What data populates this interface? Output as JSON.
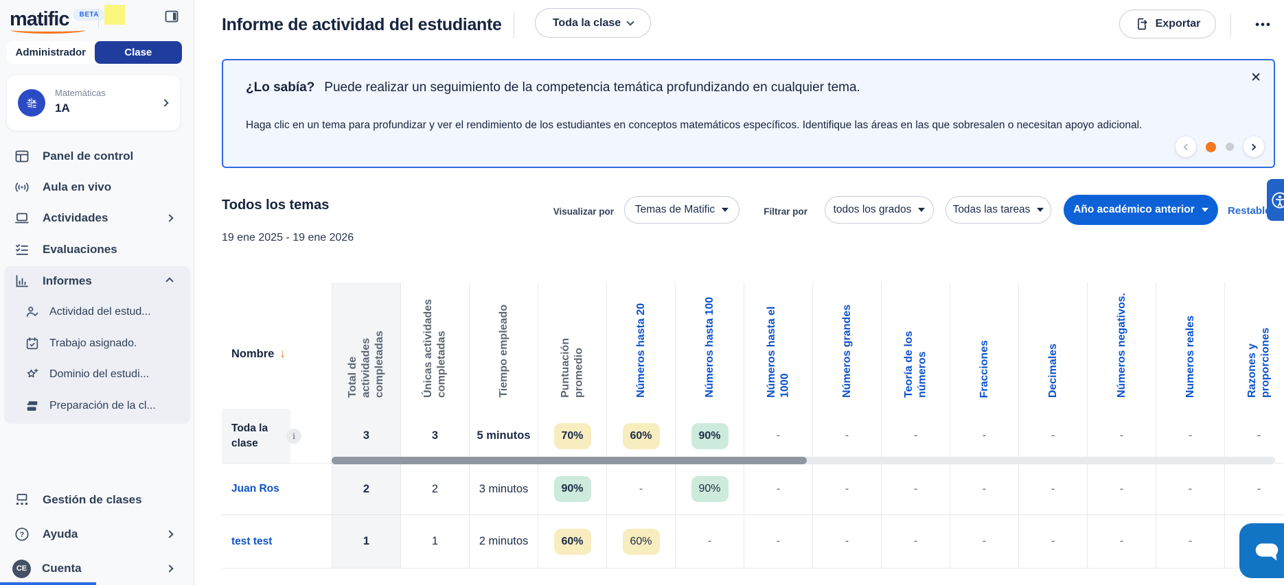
{
  "sidebar": {
    "logo_text": "matific",
    "beta_label": "BETA",
    "tabs": {
      "admin": "Administrador",
      "class": "Clase"
    },
    "class_card": {
      "subject": "Matemáticas",
      "class_name": "1A",
      "icon": "math-class-icon"
    },
    "nav_top": [
      {
        "label": "Panel de control",
        "icon": "dashboard"
      },
      {
        "label": "Aula en vivo",
        "icon": "live"
      },
      {
        "label": "Actividades",
        "icon": "laptop",
        "chevron": "right"
      },
      {
        "label": "Evaluaciones",
        "icon": "checklist"
      }
    ],
    "informes": {
      "label": "Informes",
      "icon": "chart",
      "chevron": "up",
      "children": [
        {
          "label": "Actividad del estud...",
          "icon": "person-check"
        },
        {
          "label": "Trabajo asignado.",
          "icon": "calendar-check"
        },
        {
          "label": "Dominio del estudi...",
          "icon": "star-plus"
        },
        {
          "label": "Preparación de la cl...",
          "icon": "layers"
        }
      ]
    },
    "footer_nav": [
      {
        "label": "Gestión de clases",
        "icon": "classroom"
      },
      {
        "label": "Ayuda",
        "icon": "help",
        "chevron": "right"
      },
      {
        "label": "Cuenta",
        "icon": "avatar",
        "avatar": "CE",
        "chevron": "right"
      }
    ]
  },
  "header": {
    "title": "Informe de actividad del estudiante",
    "scope_dropdown": "Toda la clase",
    "export_label": "Exportar",
    "more_label": "•••"
  },
  "banner": {
    "title": "¿Lo sabía?",
    "headline": "Puede realizar un seguimiento de la competencia temática profundizando en cualquier tema.",
    "body": "Haga clic en un tema para profundizar y ver el rendimiento de los estudiantes en conceptos matemáticos específicos. Identifique las áreas en las que sobresalen o necesitan apoyo adicional.",
    "close": "✕",
    "carousel_dots": [
      {
        "state": "active"
      },
      {
        "state": "idle"
      }
    ]
  },
  "filters": {
    "section_title": "Todos los temas",
    "date_range": "19 ene 2025 - 19 ene 2026",
    "visualize_label": "Visualizar por",
    "visualize_value": "Temas de Matific",
    "filter_label": "Filtrar por",
    "grades_value": "todos los grados",
    "tasks_value": "Todas las tareas",
    "year_value": "Año académico anterior",
    "reset_label": "Restable"
  },
  "table": {
    "name_header": "Nombre",
    "sort_arrow": "↓",
    "metric_headers": [
      "Total de actividades completadas",
      "Únicas actividades completadas",
      "Tiempo empleado",
      "Puntuación promedio"
    ],
    "topic_headers": [
      "Números hasta 20",
      "Números hasta 100",
      "Números hasta el 1000",
      "Números grandes",
      "Teoría de los números",
      "Fracciones",
      "Decimales",
      "Números negativos.",
      "Numeros reales",
      "Razones y proporciones"
    ],
    "rows": [
      {
        "name": "Toda la clase",
        "link": false,
        "info": true,
        "cells": [
          {
            "v": "3",
            "b": true
          },
          {
            "v": "3",
            "b": true
          },
          {
            "v": "5 minutos",
            "b": true
          },
          {
            "v": "70%",
            "badge": "yellow",
            "b": true
          },
          {
            "v": "60%",
            "badge": "yellow",
            "b": true
          },
          {
            "v": "90%",
            "badge": "teal",
            "b": true
          },
          {
            "v": "-"
          },
          {
            "v": "-"
          },
          {
            "v": "-"
          },
          {
            "v": "-"
          },
          {
            "v": "-"
          },
          {
            "v": "-"
          },
          {
            "v": "-"
          },
          {
            "v": "-"
          }
        ]
      },
      {
        "name": "Juan Ros",
        "link": true,
        "info": false,
        "cells": [
          {
            "v": "2",
            "b": true
          },
          {
            "v": "2"
          },
          {
            "v": "3 minutos"
          },
          {
            "v": "90%",
            "badge": "teal",
            "b": true
          },
          {
            "v": "-"
          },
          {
            "v": "90%",
            "badge": "teal"
          },
          {
            "v": "-"
          },
          {
            "v": "-"
          },
          {
            "v": "-"
          },
          {
            "v": "-"
          },
          {
            "v": "-"
          },
          {
            "v": "-"
          },
          {
            "v": "-"
          },
          {
            "v": "-"
          }
        ]
      },
      {
        "name": "test test",
        "link": true,
        "info": false,
        "cells": [
          {
            "v": "1",
            "b": true
          },
          {
            "v": "1"
          },
          {
            "v": "2 minutos"
          },
          {
            "v": "60%",
            "badge": "yellow",
            "b": true
          },
          {
            "v": "60%",
            "badge": "yellow"
          },
          {
            "v": "-"
          },
          {
            "v": "-"
          },
          {
            "v": "-"
          },
          {
            "v": "-"
          },
          {
            "v": "-"
          },
          {
            "v": "-"
          },
          {
            "v": "-"
          },
          {
            "v": "-"
          },
          {
            "v": "-"
          }
        ]
      }
    ]
  },
  "colors": {
    "brand_orange": "#f5771e",
    "topic_blue": "#0b52cc",
    "tab_blue": "#203d9d",
    "year_button_blue": "#0d62d8",
    "banner_border": "#2f6be2",
    "badge_yellow": "#f8edbe",
    "badge_teal": "#cdebdc",
    "a11y_blue": "#2063c9",
    "chat_blue": "#1274c5"
  }
}
